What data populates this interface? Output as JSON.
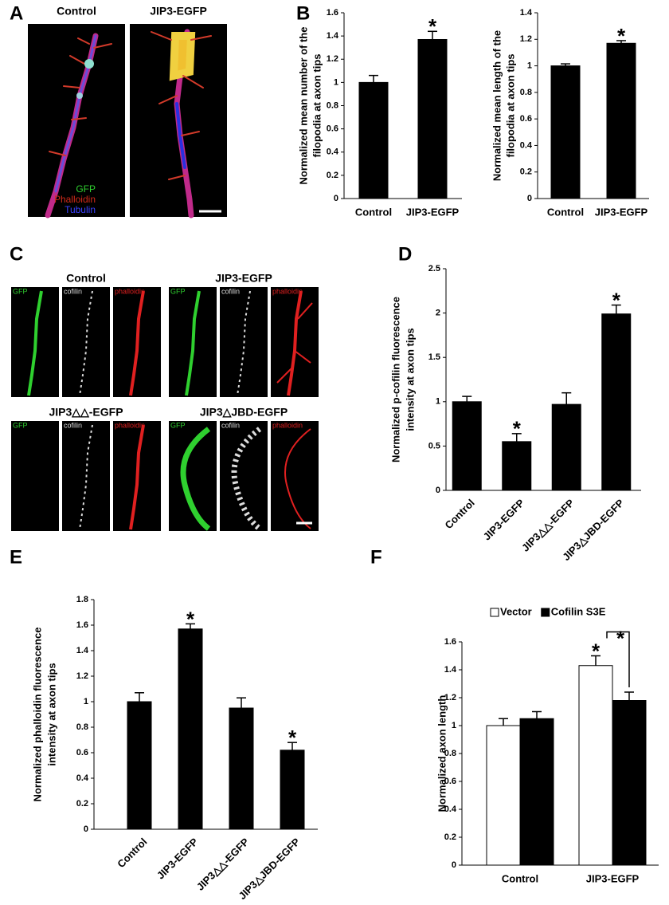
{
  "panel_a": {
    "label": "A",
    "image_titles": [
      "Control",
      "JIP3-EGFP"
    ],
    "channels": [
      "GFP",
      "Phalloidin",
      "Tubulin"
    ]
  },
  "panel_c": {
    "label": "C",
    "groups": [
      {
        "title": "Control",
        "channels": [
          "GFP",
          "cofilin",
          "phalloidin"
        ]
      },
      {
        "title": "JIP3-EGFP",
        "channels": [
          "GFP",
          "cofilin",
          "phalloidin"
        ]
      },
      {
        "title": "JIP3△△-EGFP",
        "channels": [
          "GFP",
          "cofilin",
          "phalloidin"
        ]
      },
      {
        "title": "JIP3△JBD-EGFP",
        "channels": [
          "GFP",
          "cofilin",
          "phalloidin"
        ]
      }
    ]
  },
  "chart_data": [
    {
      "type": "bar",
      "panel": "B",
      "y_label": [
        "Normalized mean number of the",
        "filopodia at axon tips"
      ],
      "categories": [
        "Control",
        "JIP3-EGFP"
      ],
      "values": [
        1.0,
        1.37
      ],
      "errors": [
        0.06,
        0.07
      ],
      "significance": [
        null,
        "*"
      ],
      "color": "#000000",
      "ylim": [
        0,
        1.6
      ],
      "yticks": [
        0,
        0.2,
        0.4,
        0.6,
        0.8,
        1,
        1.2,
        1.4,
        1.6
      ]
    },
    {
      "type": "bar",
      "y_label": [
        "Normalized mean length of the",
        "filopodia at axon tips"
      ],
      "categories": [
        "Control",
        "JIP3-EGFP"
      ],
      "values": [
        1.0,
        1.17
      ],
      "errors": [
        0.015,
        0.02
      ],
      "significance": [
        null,
        "*"
      ],
      "color": "#000000",
      "ylim": [
        0,
        1.4
      ],
      "yticks": [
        0,
        0.2,
        0.4,
        0.6,
        0.8,
        1,
        1.2,
        1.4
      ]
    },
    {
      "type": "bar",
      "panel": "D",
      "y_label": [
        "Normalized p-cofilin fluorescence",
        "intensity at axon tips"
      ],
      "categories": [
        "Control",
        "JIP3-EGFP",
        "JIP3△△-EGFP",
        "JIP3△JBD-EGFP"
      ],
      "values": [
        1.0,
        0.55,
        0.97,
        1.99
      ],
      "errors": [
        0.06,
        0.09,
        0.13,
        0.1
      ],
      "significance": [
        null,
        "*",
        null,
        "*"
      ],
      "color": "#000000",
      "ylim": [
        0,
        2.5
      ],
      "yticks": [
        0,
        0.5,
        1,
        1.5,
        2,
        2.5
      ]
    },
    {
      "type": "bar",
      "panel": "E",
      "y_label": [
        "Normalized phalloidin fluorescence",
        "intensity at axon tips"
      ],
      "categories": [
        "Control",
        "JIP3-EGFP",
        "JIP3△△-EGFP",
        "JIP3△JBD-EGFP"
      ],
      "values": [
        1.0,
        1.57,
        0.95,
        0.62
      ],
      "errors": [
        0.07,
        0.04,
        0.08,
        0.06
      ],
      "significance": [
        null,
        "*",
        null,
        "*"
      ],
      "color": "#000000",
      "ylim": [
        0,
        1.8
      ],
      "yticks": [
        0,
        0.2,
        0.4,
        0.6,
        0.8,
        1,
        1.2,
        1.4,
        1.6,
        1.8
      ]
    },
    {
      "type": "bar",
      "panel": "F",
      "y_label": [
        "Normalized axon length"
      ],
      "legend": "top",
      "categories": [
        "Control",
        "JIP3-EGFP"
      ],
      "series": [
        {
          "name": "Vector",
          "color": "#ffffff",
          "values": [
            1.0,
            1.43
          ],
          "errors": [
            0.05,
            0.07
          ],
          "significance": [
            null,
            "*"
          ]
        },
        {
          "name": "Cofilin S3E",
          "color": "#000000",
          "values": [
            1.05,
            1.18
          ],
          "errors": [
            0.05,
            0.06
          ],
          "significance": [
            null,
            null
          ]
        }
      ],
      "comparison_label": "*",
      "ylim": [
        0,
        1.6
      ],
      "yticks": [
        0,
        0.2,
        0.4,
        0.6,
        0.8,
        1,
        1.2,
        1.4,
        1.6
      ]
    }
  ]
}
